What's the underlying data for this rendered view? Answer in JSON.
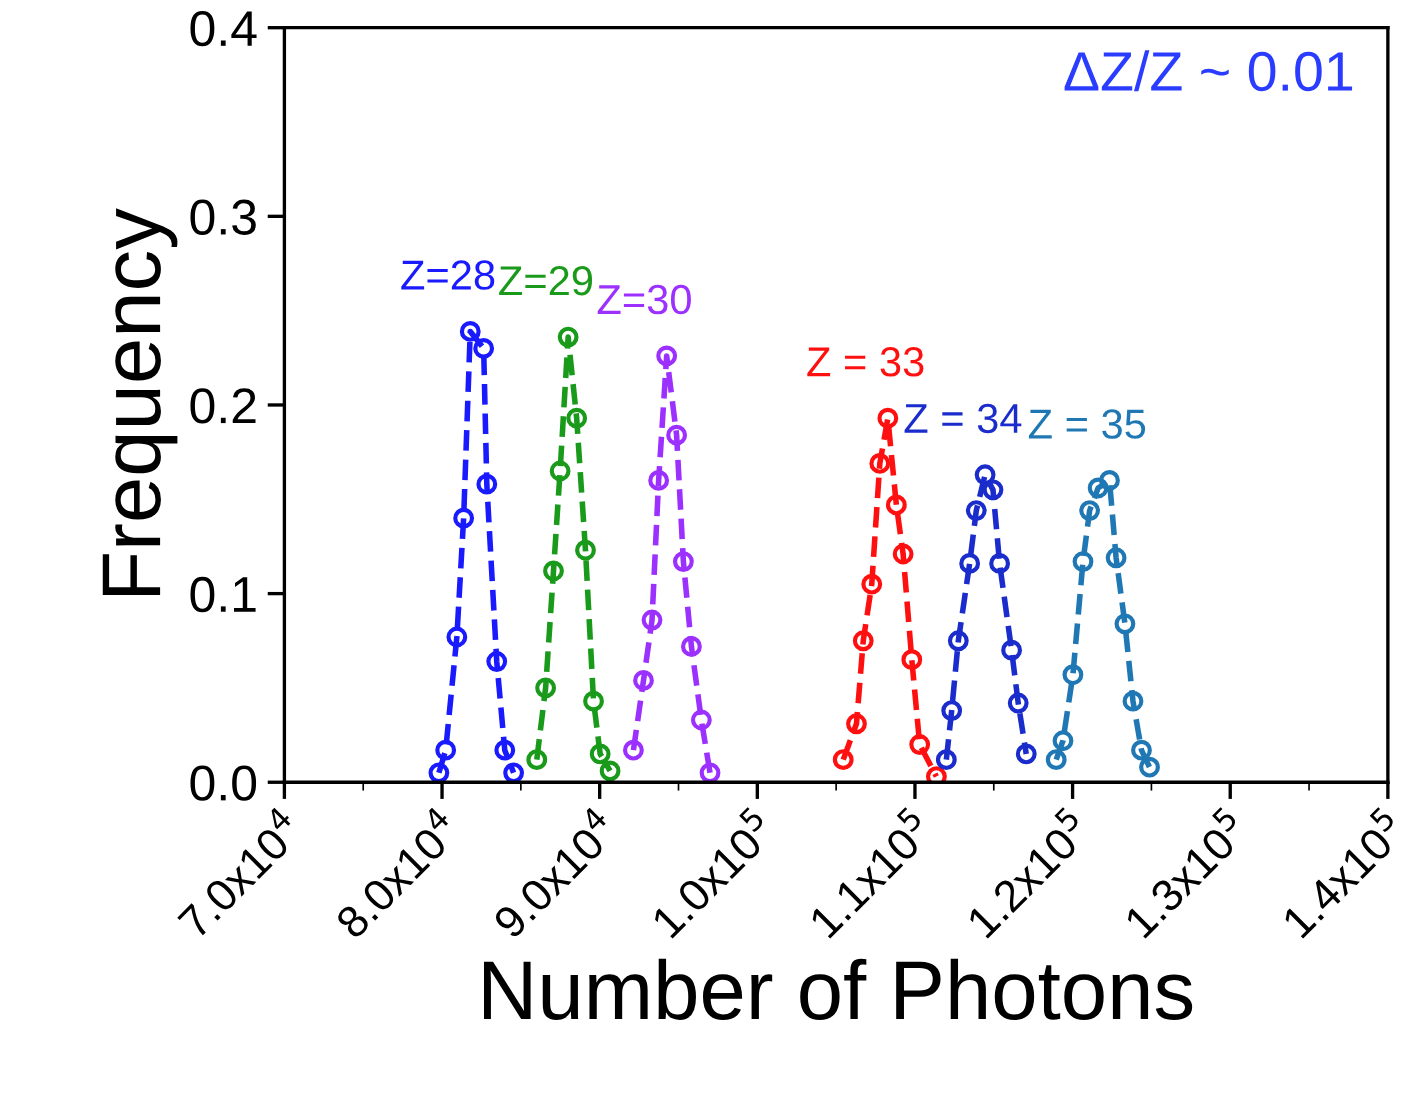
{
  "chart_data": {
    "type": "line",
    "xlabel": "Number of Photons",
    "ylabel": "Frequency",
    "annotations": [
      "ΔZ/Z ~ 0.01"
    ],
    "xlim": [
      70000,
      140000
    ],
    "ylim": [
      0,
      0.4
    ],
    "xticks": [
      {
        "value": 70000,
        "label": "7.0x10$^{4}$"
      },
      {
        "value": 80000,
        "label": "8.0x10$^{4}$"
      },
      {
        "value": 90000,
        "label": "9.0x10$^{4}$"
      },
      {
        "value": 100000,
        "label": "1.0x10$^{5}$"
      },
      {
        "value": 110000,
        "label": "1.1x10$^{5}$"
      },
      {
        "value": 120000,
        "label": "1.2x10$^{5}$"
      },
      {
        "value": 130000,
        "label": "1.3x10$^{5}$"
      },
      {
        "value": 140000,
        "label": "1.4x10$^{5}$"
      }
    ],
    "yticks": [
      {
        "value": 0,
        "label": "0.0"
      },
      0.1,
      0.2,
      0.3,
      0.4
    ],
    "marker": "circle",
    "line_style": "dashed",
    "grid": false,
    "legend": false,
    "series": [
      {
        "name": "Z=28",
        "color": "#1a1aff",
        "x": [
          79800,
          80230,
          80940,
          81370,
          81790,
          82640,
          82840,
          83470,
          83980,
          84540
        ],
        "values": [
          0.005,
          0.017,
          0.077,
          0.14,
          0.239,
          0.23,
          0.158,
          0.064,
          0.017,
          0.005
        ]
      },
      {
        "name": "Z=29",
        "color": "#1a9a1a",
        "x": [
          86010,
          86570,
          87070,
          87490,
          88000,
          88540,
          89100,
          89610,
          90030,
          90660
        ],
        "values": [
          0.012,
          0.05,
          0.112,
          0.165,
          0.236,
          0.193,
          0.123,
          0.043,
          0.015,
          0.006
        ]
      },
      {
        "name": "Z=30",
        "color": "#9b30ff",
        "x": [
          92140,
          92780,
          93320,
          93740,
          94250,
          94880,
          95310,
          95820,
          96450,
          97000
        ],
        "values": [
          0.017,
          0.054,
          0.086,
          0.16,
          0.226,
          0.184,
          0.117,
          0.072,
          0.033,
          0.005
        ]
      },
      {
        "name": "Z = 33",
        "color": "#ff1010",
        "x": [
          105450,
          106290,
          106720,
          107260,
          107770,
          108280,
          108820,
          109250,
          109800,
          110300,
          111360
        ],
        "values": [
          0.012,
          0.031,
          0.075,
          0.105,
          0.169,
          0.193,
          0.147,
          0.121,
          0.065,
          0.02,
          0.003
        ]
      },
      {
        "name": "Z = 34",
        "color": "#1a2ccc",
        "x": [
          111990,
          112330,
          112750,
          113470,
          113890,
          114450,
          114950,
          115370,
          116130,
          116550,
          117060
        ],
        "values": [
          0.012,
          0.038,
          0.075,
          0.116,
          0.144,
          0.163,
          0.155,
          0.116,
          0.07,
          0.042,
          0.015
        ]
      },
      {
        "name": "Z = 35",
        "color": "#1f78b4",
        "x": [
          118960,
          119390,
          120020,
          120660,
          121080,
          121620,
          122340,
          122760,
          123320,
          123830,
          124370,
          124880
        ],
        "values": [
          0.012,
          0.022,
          0.057,
          0.117,
          0.144,
          0.156,
          0.16,
          0.119,
          0.084,
          0.043,
          0.017,
          0.008
        ]
      }
    ]
  }
}
